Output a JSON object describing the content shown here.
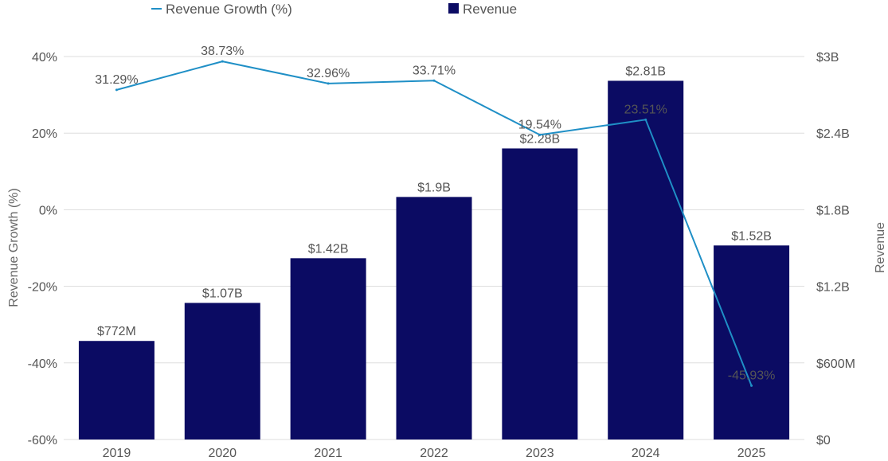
{
  "legend": {
    "growth_label": "Revenue Growth (%)",
    "revenue_label": "Revenue"
  },
  "colors": {
    "bar": "#0b0b63",
    "line": "#1f8fc6",
    "grid": "#dddddd",
    "text": "#555555"
  },
  "chart_data": {
    "type": "bar",
    "categories": [
      "2019",
      "2020",
      "2021",
      "2022",
      "2023",
      "2024",
      "2025"
    ],
    "series": [
      {
        "name": "Revenue",
        "type": "bar",
        "axis": "right",
        "values": [
          772000000,
          1070000000,
          1420000000,
          1900000000,
          2280000000,
          2810000000,
          1520000000
        ],
        "labels": [
          "$772M",
          "$1.07B",
          "$1.42B",
          "$1.9B",
          "$2.28B",
          "$2.81B",
          "$1.52B"
        ]
      },
      {
        "name": "Revenue Growth (%)",
        "type": "line",
        "axis": "left",
        "values": [
          31.29,
          38.73,
          32.96,
          33.71,
          19.54,
          23.51,
          -45.93
        ],
        "labels": [
          "31.29%",
          "38.73%",
          "32.96%",
          "33.71%",
          "19.54%",
          "23.51%",
          "-45.93%"
        ]
      }
    ],
    "y_left": {
      "label": "Revenue Growth (%)",
      "range": [
        -60,
        40
      ],
      "ticks": [
        40,
        20,
        0,
        -20,
        -40,
        -60
      ],
      "tick_labels": [
        "40%",
        "20%",
        "0%",
        "-20%",
        "-40%",
        "-60%"
      ]
    },
    "y_right": {
      "label": "Revenue",
      "range": [
        0,
        3000000000
      ],
      "ticks": [
        3000000000,
        2400000000,
        1800000000,
        1200000000,
        600000000,
        0
      ],
      "tick_labels": [
        "$3B",
        "$2.4B",
        "$1.8B",
        "$1.2B",
        "$600M",
        "$0"
      ]
    },
    "grid": true,
    "legend_position": "top"
  }
}
